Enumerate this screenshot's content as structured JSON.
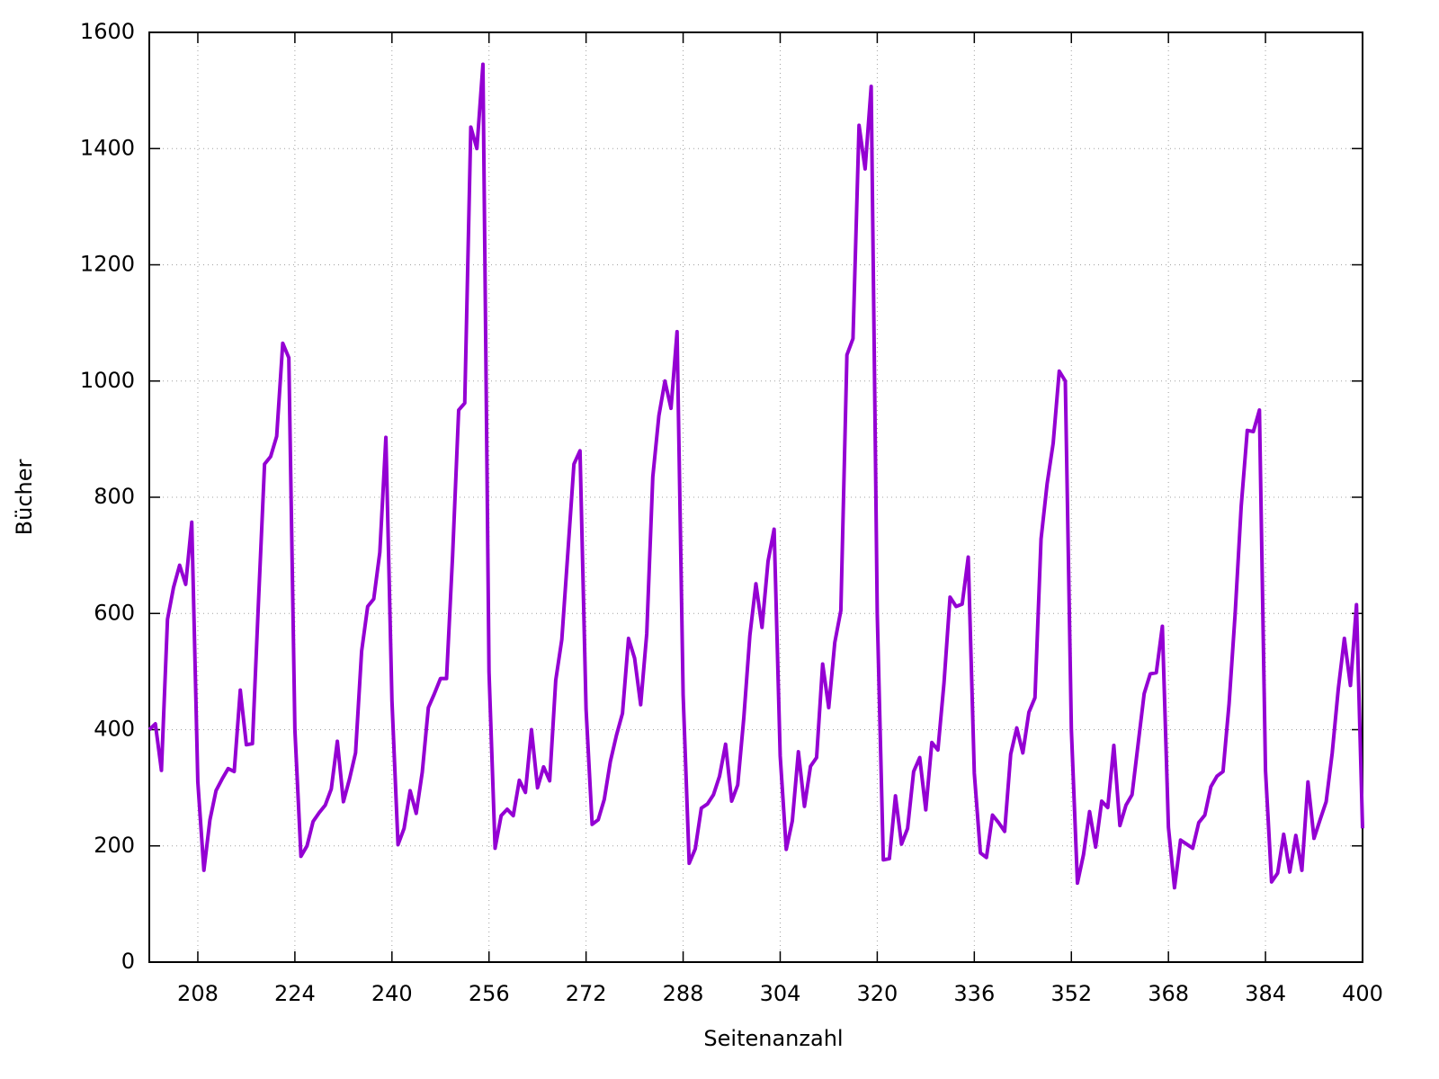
{
  "chart_data": {
    "type": "line",
    "x_label": "Seitenanzahl",
    "y_label": "Bücher",
    "x": [
      200,
      201,
      202,
      203,
      204,
      205,
      206,
      207,
      208,
      209,
      210,
      211,
      212,
      213,
      214,
      215,
      216,
      217,
      218,
      219,
      220,
      221,
      222,
      223,
      224,
      225,
      226,
      227,
      228,
      229,
      230,
      231,
      232,
      233,
      234,
      235,
      236,
      237,
      238,
      239,
      240,
      241,
      242,
      243,
      244,
      245,
      246,
      247,
      248,
      249,
      250,
      251,
      252,
      253,
      254,
      255,
      256,
      257,
      258,
      259,
      260,
      261,
      262,
      263,
      264,
      265,
      266,
      267,
      268,
      269,
      270,
      271,
      272,
      273,
      274,
      275,
      276,
      277,
      278,
      279,
      280,
      281,
      282,
      283,
      284,
      285,
      286,
      287,
      288,
      289,
      290,
      291,
      292,
      293,
      294,
      295,
      296,
      297,
      298,
      299,
      300,
      301,
      302,
      303,
      304,
      305,
      306,
      307,
      308,
      309,
      310,
      311,
      312,
      313,
      314,
      315,
      316,
      317,
      318,
      319,
      320,
      321,
      322,
      323,
      324,
      325,
      326,
      327,
      328,
      329,
      330,
      331,
      332,
      333,
      334,
      335,
      336,
      337,
      338,
      339,
      340,
      341,
      342,
      343,
      344,
      345,
      346,
      347,
      348,
      349,
      350,
      351,
      352,
      353,
      354,
      355,
      356,
      357,
      358,
      359,
      360,
      361,
      362,
      363,
      364,
      365,
      366,
      367,
      368,
      369,
      370,
      371,
      372,
      373,
      374,
      375,
      376,
      377,
      378,
      379,
      380,
      381,
      382,
      383,
      384,
      385,
      386,
      387,
      388,
      389,
      390,
      391,
      392,
      393,
      394,
      395,
      396,
      397,
      398,
      399,
      400
    ],
    "series": [
      {
        "color": "#9400d3",
        "values": [
          400,
          410,
          330,
          590,
          645,
          683,
          650,
          757,
          310,
          158,
          245,
          295,
          315,
          333,
          328,
          468,
          374,
          376,
          620,
          857,
          870,
          905,
          1065,
          1040,
          400,
          182,
          200,
          242,
          257,
          270,
          298,
          380,
          276,
          315,
          360,
          535,
          612,
          625,
          705,
          903,
          450,
          202,
          230,
          295,
          256,
          327,
          438,
          462,
          488,
          488,
          700,
          950,
          962,
          1437,
          1400,
          1545,
          500,
          196,
          252,
          263,
          252,
          313,
          292,
          400,
          300,
          336,
          312,
          485,
          555,
          705,
          857,
          880,
          435,
          237,
          245,
          280,
          345,
          390,
          428,
          557,
          523,
          443,
          565,
          835,
          940,
          1000,
          953,
          1085,
          460,
          170,
          195,
          265,
          272,
          288,
          320,
          375,
          277,
          305,
          420,
          562,
          651,
          576,
          690,
          745,
          355,
          194,
          243,
          362,
          268,
          337,
          352,
          513,
          438,
          550,
          605,
          1045,
          1073,
          1440,
          1365,
          1507,
          600,
          176,
          178,
          286,
          203,
          230,
          328,
          352,
          262,
          378,
          365,
          480,
          628,
          612,
          616,
          697,
          325,
          188,
          180,
          253,
          240,
          225,
          358,
          403,
          360,
          430,
          455,
          728,
          823,
          893,
          1017,
          1000,
          400,
          136,
          185,
          259,
          198,
          277,
          266,
          373,
          235,
          270,
          288,
          375,
          462,
          496,
          498,
          578,
          232,
          128,
          210,
          203,
          196,
          240,
          253,
          302,
          320,
          328,
          445,
          600,
          785,
          915,
          913,
          950,
          330,
          138,
          153,
          220,
          155,
          218,
          158,
          310,
          213,
          245,
          276,
          360,
          470,
          557,
          476,
          615,
          230
        ]
      }
    ],
    "xlim": [
      200,
      400
    ],
    "xticks": [
      208,
      224,
      240,
      256,
      272,
      288,
      304,
      320,
      336,
      352,
      368,
      384,
      400
    ],
    "ylim": [
      0,
      1600
    ],
    "yticks": [
      0,
      200,
      400,
      600,
      800,
      1000,
      1200,
      1400,
      1600
    ],
    "grid": true
  }
}
